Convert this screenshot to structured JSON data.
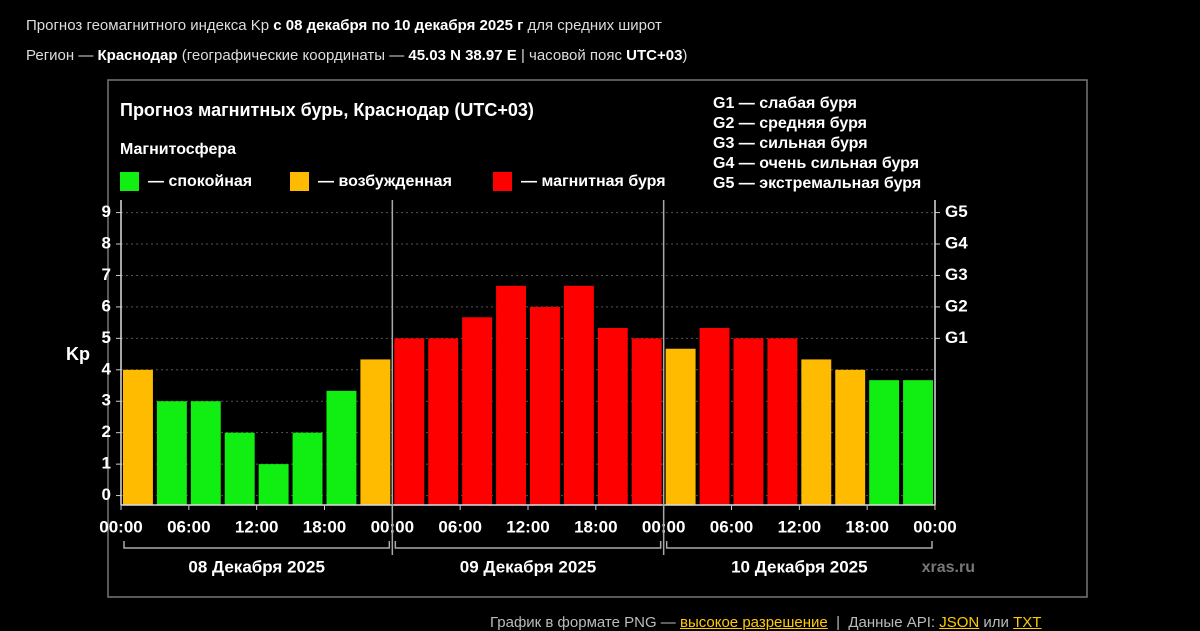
{
  "header": {
    "line1": [
      {
        "text": "Прогноз геомагнитного индекса Kp ",
        "bold": false
      },
      {
        "text": "с 08 декабря по 10 декабря 2025 г",
        "bold": true
      },
      {
        "text": " для средних широт",
        "bold": false
      }
    ],
    "line2": [
      {
        "text": "Регион — ",
        "bold": false
      },
      {
        "text": "Краснодар",
        "bold": true
      },
      {
        "text": " (географические координаты — ",
        "bold": false
      },
      {
        "text": "45.03 N 38.97 E",
        "bold": true
      },
      {
        "text": " | часовой пояс ",
        "bold": false
      },
      {
        "text": "UTC+03",
        "bold": true
      },
      {
        "text": ")",
        "bold": false
      }
    ]
  },
  "chart_data": {
    "type": "bar",
    "title": "Прогноз магнитных бурь, Краснодар (UTC+03)",
    "legend_title": "Магнитосфера",
    "legend": [
      {
        "name": "— спокойная",
        "color": "#11ee11"
      },
      {
        "name": "— возбужденная",
        "color": "#ffbb00"
      },
      {
        "name": "— магнитная буря",
        "color": "#ff0000"
      }
    ],
    "storm_levels": [
      "G1 — слабая буря",
      "G2 — средняя буря",
      "G3 — сильная буря",
      "G4 — очень сильная буря",
      "G5 — экстремальная буря"
    ],
    "y_label": "Kp",
    "x": [
      0,
      3,
      6,
      9,
      12,
      15,
      18,
      21,
      24,
      27,
      30,
      33,
      36,
      39,
      42,
      45,
      48,
      51,
      54,
      57,
      60,
      63,
      66,
      69
    ],
    "values": [
      4,
      3,
      3,
      2,
      1,
      2,
      3.33,
      4.33,
      5,
      5,
      5.67,
      6.67,
      6,
      6.67,
      5.33,
      5,
      4.67,
      5.33,
      5,
      5,
      4.33,
      4,
      3.67,
      3.67
    ],
    "colors": [
      "#ffbb00",
      "#11ee11",
      "#11ee11",
      "#11ee11",
      "#11ee11",
      "#11ee11",
      "#11ee11",
      "#ffbb00",
      "#ff0000",
      "#ff0000",
      "#ff0000",
      "#ff0000",
      "#ff0000",
      "#ff0000",
      "#ff0000",
      "#ff0000",
      "#ffbb00",
      "#ff0000",
      "#ff0000",
      "#ff0000",
      "#ffbb00",
      "#ffbb00",
      "#11ee11",
      "#11ee11"
    ],
    "xlim": [
      0,
      72
    ],
    "xticks": [
      {
        "value": 0,
        "label": "00:00"
      },
      {
        "value": 6,
        "label": "06:00"
      },
      {
        "value": 12,
        "label": "12:00"
      },
      {
        "value": 18,
        "label": "18:00"
      },
      {
        "value": 24,
        "label": "00:00"
      },
      {
        "value": 30,
        "label": "06:00"
      },
      {
        "value": 36,
        "label": "12:00"
      },
      {
        "value": 42,
        "label": "18:00"
      },
      {
        "value": 48,
        "label": "00:00"
      },
      {
        "value": 54,
        "label": "06:00"
      },
      {
        "value": 60,
        "label": "12:00"
      },
      {
        "value": 66,
        "label": "18:00"
      },
      {
        "value": 72,
        "label": "00:00"
      }
    ],
    "days": [
      "08 Декабря 2025",
      "09 Декабря 2025",
      "10 Декабря 2025"
    ],
    "ylim": [
      -0.3,
      9.4
    ],
    "yticks": [
      0,
      1,
      2,
      3,
      4,
      5,
      6,
      7,
      8,
      9
    ],
    "y2lim": [
      -0.3,
      9.4
    ],
    "y2ticks": [
      {
        "value": 5,
        "label": "G1"
      },
      {
        "value": 6,
        "label": "G2"
      },
      {
        "value": 7,
        "label": "G3"
      },
      {
        "value": 8,
        "label": "G4"
      },
      {
        "value": 9,
        "label": "G5"
      }
    ],
    "grid": true,
    "watermark": "xras.ru"
  },
  "footer": [
    {
      "text": "График в формате PNG — ",
      "link": false
    },
    {
      "text": "высокое разрешение",
      "link": true
    },
    {
      "text": "  |  Данные API: ",
      "link": false
    },
    {
      "text": "JSON",
      "link": true
    },
    {
      "text": " или ",
      "link": false
    },
    {
      "text": "TXT",
      "link": true
    }
  ]
}
